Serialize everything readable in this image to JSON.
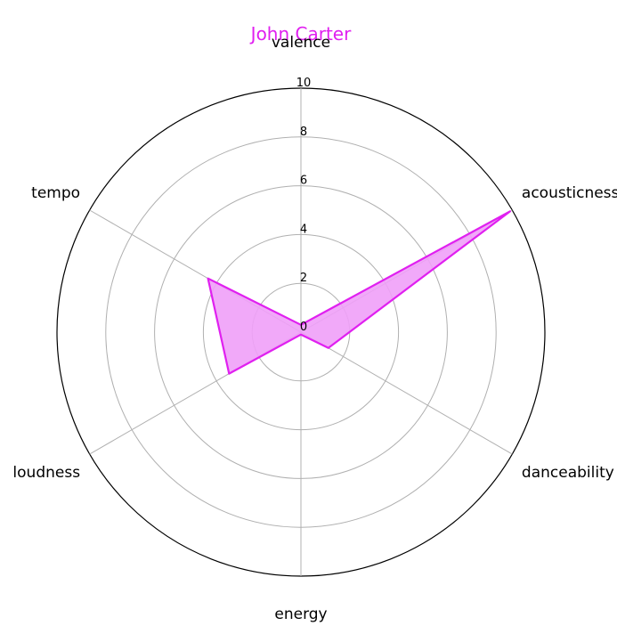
{
  "chart_data": {
    "type": "radar",
    "title": "John Carter",
    "axes": [
      "valence",
      "acousticness",
      "danceability",
      "energy",
      "loudness",
      "tempo"
    ],
    "series": [
      {
        "values": [
          0.3,
          9.9,
          1.3,
          0.1,
          3.4,
          4.4
        ]
      }
    ],
    "rlim": [
      0,
      10
    ],
    "rticks": [
      0,
      2,
      4,
      6,
      8,
      10
    ],
    "grid": true,
    "colors": {
      "series": "#e020f0",
      "fill": "#f0a0f8",
      "title": "#e020f0"
    }
  }
}
